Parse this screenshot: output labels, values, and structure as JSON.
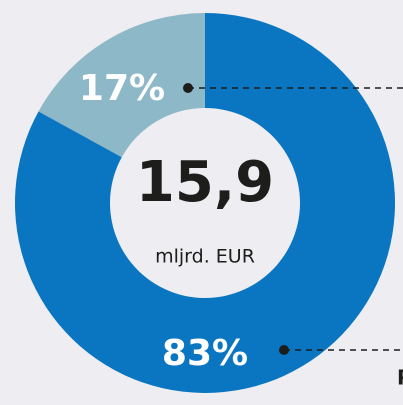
{
  "chart_data": {
    "type": "donut",
    "values": [
      17,
      83
    ],
    "value_labels": [
      "17%",
      "83%"
    ],
    "colors": [
      "#8cb8c8",
      "#0a76c1"
    ],
    "center_value": "15,9",
    "center_label": "mljrd. EUR",
    "annotations": [
      "P"
    ]
  }
}
